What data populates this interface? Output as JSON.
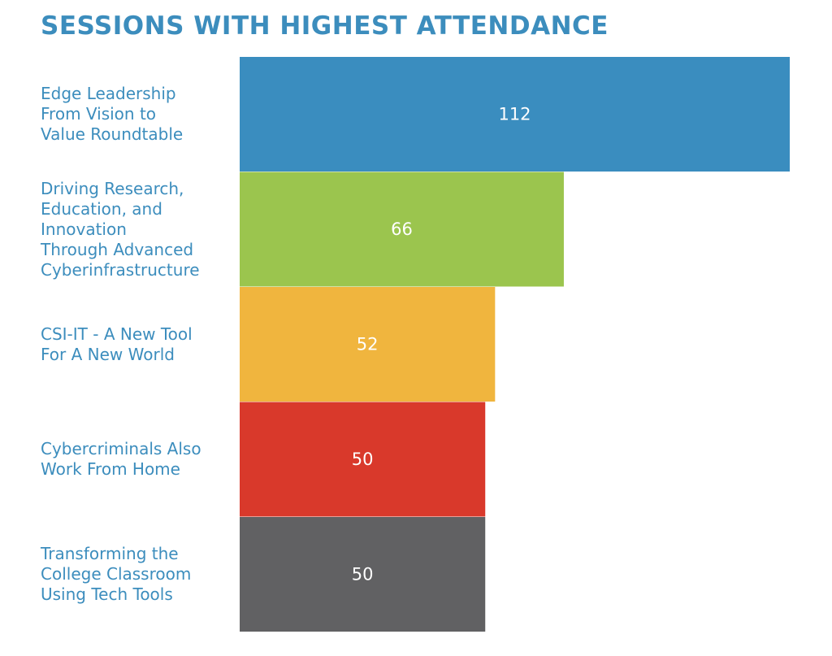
{
  "chart_data": {
    "type": "bar",
    "orientation": "horizontal",
    "title": "SESSIONS WITH HIGHEST ATTENDANCE",
    "categories": [
      "Edge Leadership From Vision to Value Roundtable",
      "Driving Research, Education, and Innovation Through Advanced Cyberinfrastructure",
      "CSI-IT - A New Tool For A New World",
      "Cybercriminals Also Work From Home",
      "Transforming the College Classroom Using Tech Tools"
    ],
    "category_lines": [
      [
        "Edge Leadership",
        "From Vision to",
        "Value Roundtable"
      ],
      [
        "Driving Research,",
        "Education, and",
        "Innovation",
        "Through Advanced",
        "Cyberinfrastructure"
      ],
      [
        "CSI-IT - A New Tool",
        "For A New World"
      ],
      [
        "Cybercriminals Also",
        "Work From Home"
      ],
      [
        "Transforming the",
        "College Classroom",
        "Using Tech Tools"
      ]
    ],
    "values": [
      112,
      66,
      52,
      50,
      50
    ],
    "bar_colors": [
      "#3a8dbf",
      "#9bc54e",
      "#f0b53e",
      "#d9392b",
      "#616163"
    ],
    "data_labels": [
      "112",
      "66",
      "52",
      "50",
      "50"
    ],
    "xlim": [
      0,
      112
    ],
    "grid": false,
    "legend": "none",
    "title_color": "#3c8dbd",
    "label_color": "#3c8dbd",
    "data_label_color": "#ffffff"
  }
}
